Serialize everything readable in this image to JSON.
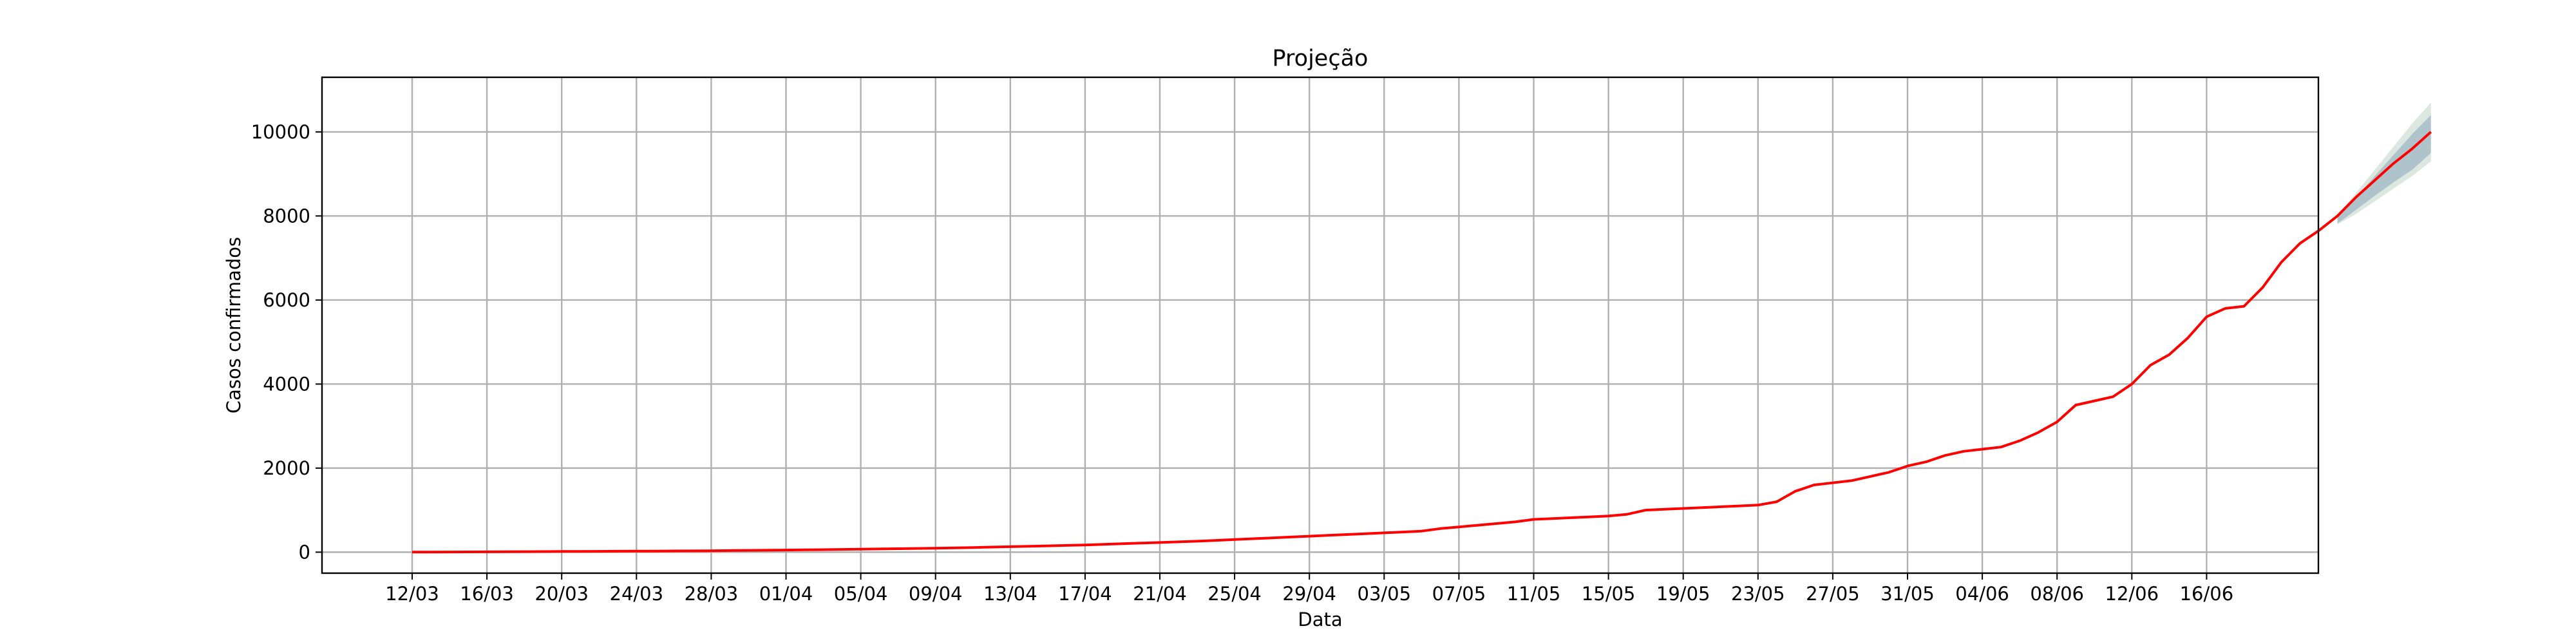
{
  "chart_data": {
    "type": "line",
    "title": "Projeção",
    "xlabel": "Data",
    "ylabel": "Casos confirmados",
    "x_tick_labels": [
      "12/03",
      "16/03",
      "20/03",
      "24/03",
      "28/03",
      "01/04",
      "05/04",
      "09/04",
      "13/04",
      "17/04",
      "21/04",
      "25/04",
      "29/04",
      "03/05",
      "07/05",
      "11/05",
      "15/05",
      "19/05",
      "23/05",
      "27/05",
      "31/05",
      "04/06",
      "08/06",
      "12/06",
      "16/06"
    ],
    "y_ticks": [
      0,
      2000,
      4000,
      6000,
      8000,
      10000
    ],
    "ylim": [
      -500,
      11300
    ],
    "grid": true,
    "series": [
      {
        "color": "#ff0000",
        "values": [
          2,
          3,
          4,
          5,
          8,
          10,
          12,
          14,
          16,
          18,
          20,
          22,
          24,
          26,
          28,
          30,
          34,
          38,
          42,
          46,
          50,
          55,
          60,
          65,
          70,
          76,
          82,
          88,
          94,
          100,
          110,
          120,
          130,
          140,
          150,
          160,
          170,
          185,
          200,
          215,
          230,
          245,
          260,
          280,
          300,
          320,
          340,
          360,
          380,
          400,
          420,
          440,
          460,
          480,
          500,
          560,
          600,
          640,
          680,
          720,
          780,
          800,
          820,
          840,
          860,
          900,
          1000,
          1020,
          1040,
          1060,
          1080,
          1100,
          1120,
          1200,
          1450,
          1600,
          1650,
          1700,
          1800,
          1900,
          2050,
          2150,
          2300,
          2400,
          2450,
          2500,
          2650,
          2850,
          3100,
          3500,
          3600,
          3700,
          4000,
          4450,
          4700,
          5100,
          5600,
          5800,
          5850,
          6300,
          6900,
          7350,
          7650,
          8000,
          8450,
          8850,
          9250,
          9600,
          10000
        ]
      }
    ],
    "projection_band_outer": {
      "color": "#6f9f7f",
      "start_index": 103,
      "upper": [
        8000,
        8550,
        9100,
        9650,
        10200,
        10700
      ],
      "lower": [
        7800,
        8050,
        8350,
        8650,
        8950,
        9300
      ]
    },
    "projection_band_inner": {
      "color": "#7a97b3",
      "start_index": 103,
      "upper": [
        7980,
        8450,
        8950,
        9450,
        9950,
        10400
      ],
      "lower": [
        7820,
        8150,
        8480,
        8800,
        9100,
        9500
      ]
    }
  }
}
